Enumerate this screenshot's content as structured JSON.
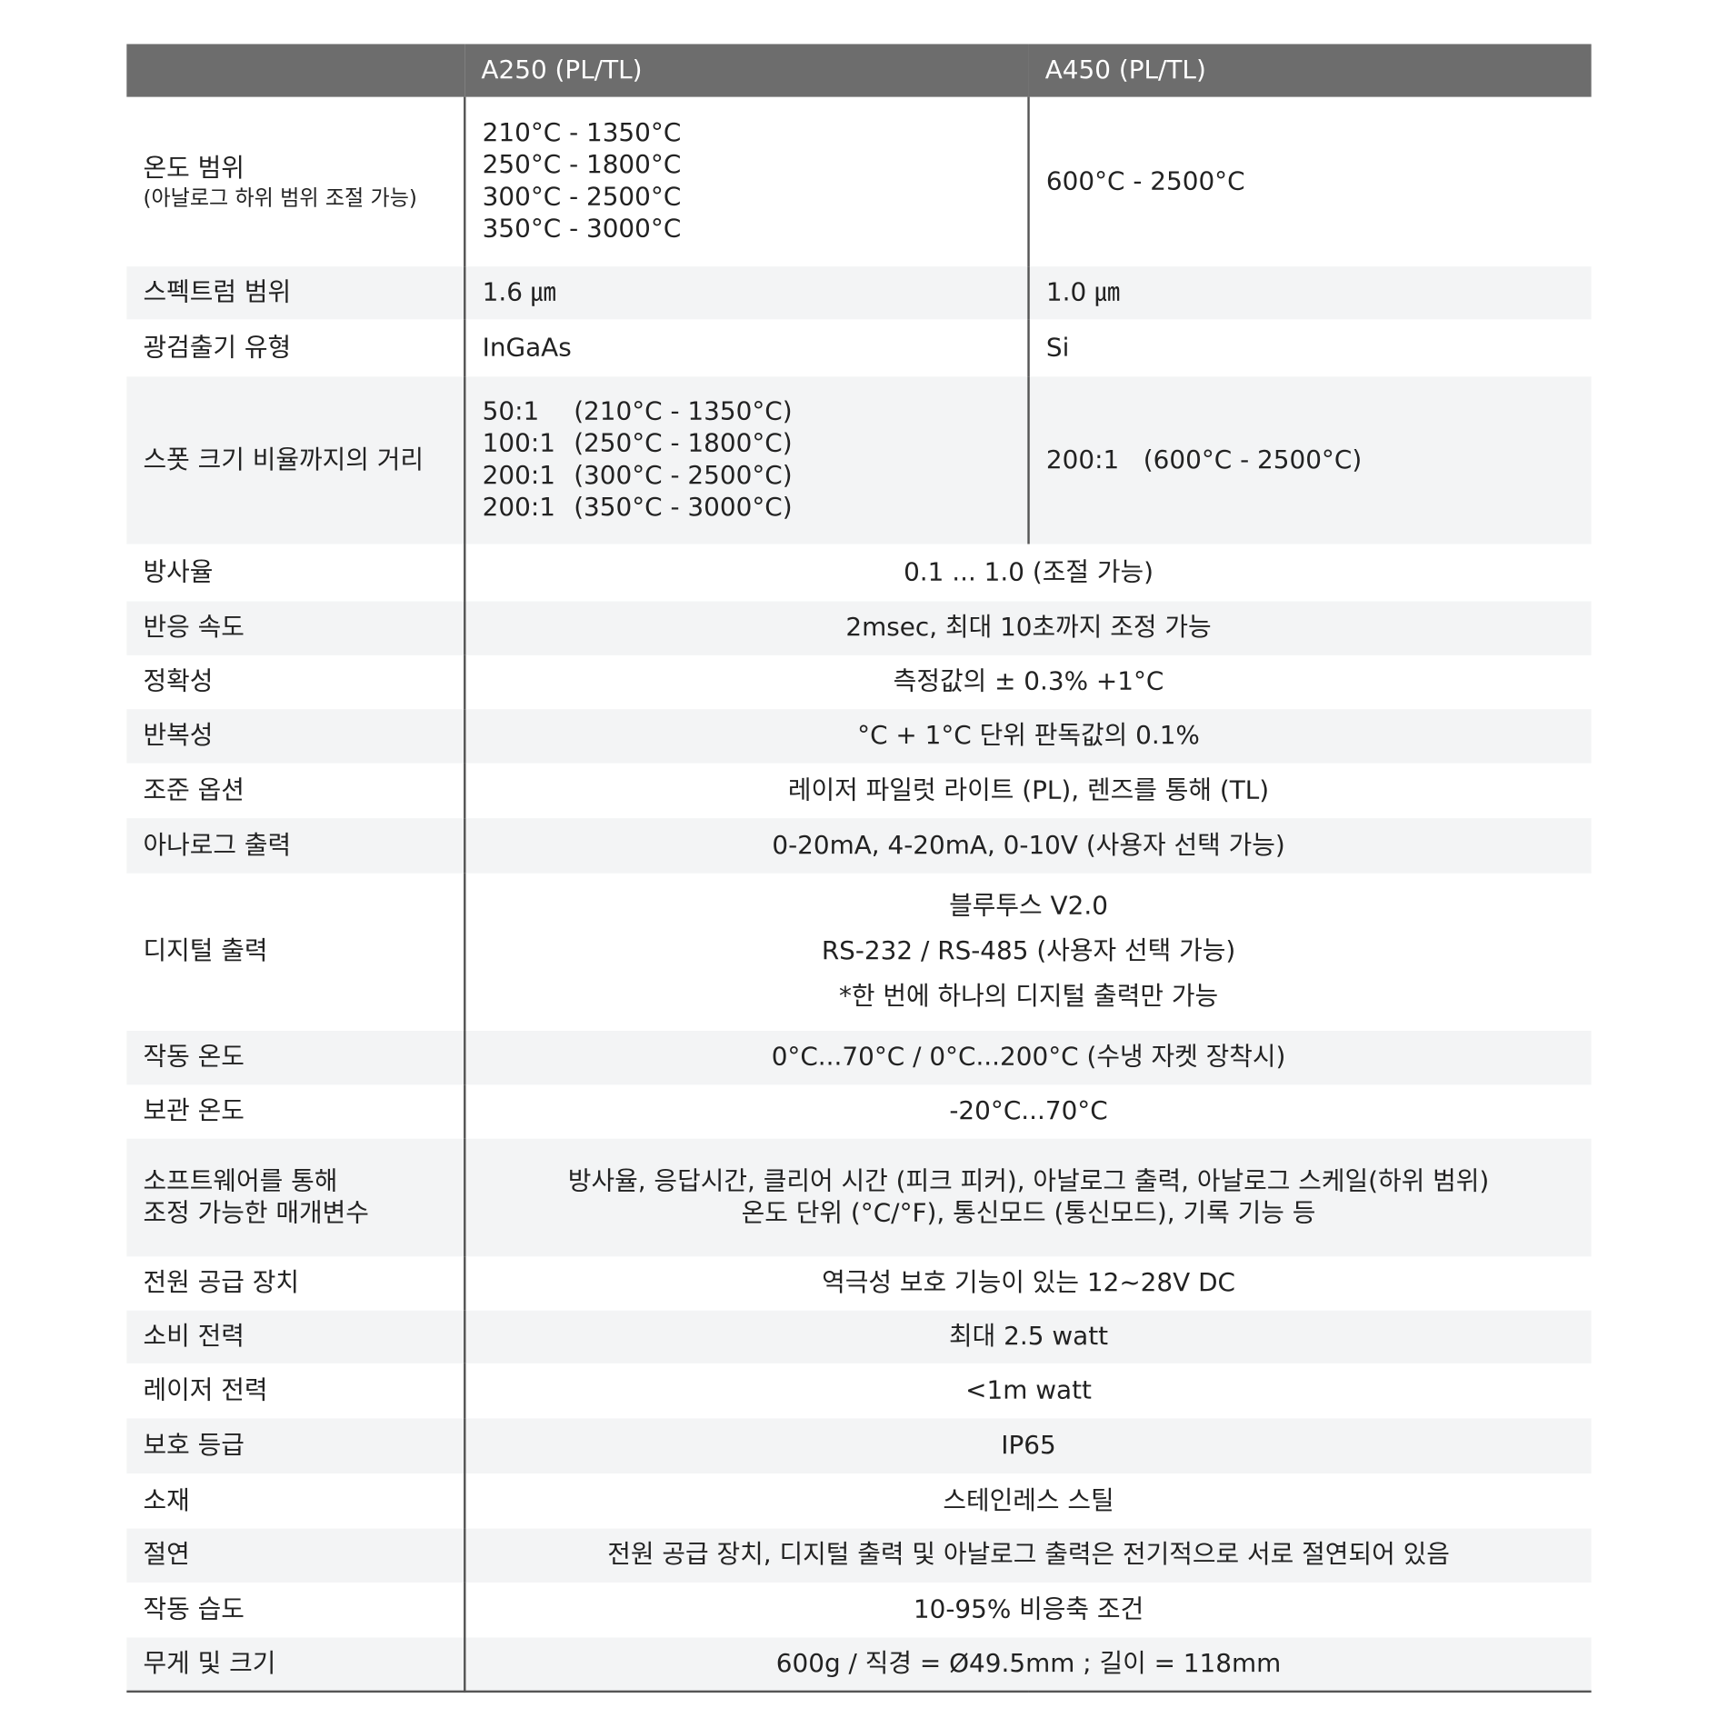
{
  "header": {
    "col1": "A250 (PL/TL)",
    "col2": "A450 (PL/TL)"
  },
  "rows": [
    {
      "label": "온도 범위",
      "sub": "(아날로그 하위 범위 조절 가능)",
      "a250": [
        "210°C - 1350°C",
        "250°C - 1800°C",
        "300°C - 2500°C",
        "350°C - 3000°C"
      ],
      "a450": "600°C - 2500°C"
    },
    {
      "label": "스펙트럼 범위",
      "a250": "1.6 ㎛",
      "a450": "1.0 ㎛"
    },
    {
      "label": "광검출기 유형",
      "a250": "InGaAs",
      "a450": "Si"
    },
    {
      "label": "스폿 크기 비율까지의 거리",
      "a250": [
        [
          "50:1",
          "(210°C - 1350°C)"
        ],
        [
          "100:1",
          "(250°C - 1800°C)"
        ],
        [
          "200:1",
          "(300°C - 2500°C)"
        ],
        [
          "200:1",
          "(350°C - 3000°C)"
        ]
      ],
      "a450": "200:1   (600°C - 2500°C)"
    },
    {
      "label": "방사율",
      "value": "0.1 ... 1.0 (조절 가능)"
    },
    {
      "label": "반응 속도",
      "value": "2msec, 최대 10초까지 조정 가능"
    },
    {
      "label": "정확성",
      "value": "측정값의 ± 0.3% +1°C"
    },
    {
      "label": "반복성",
      "value": "°C + 1°C 단위 판독값의 0.1%"
    },
    {
      "label": "조준 옵션",
      "value": "레이저 파일럿 라이트 (PL), 렌즈를 통해 (TL)"
    },
    {
      "label": "아나로그 출력",
      "value": "0-20mA, 4-20mA, 0-10V (사용자 선택 가능)"
    },
    {
      "label": "디지털 출력",
      "lines": [
        "블루투스 V2.0",
        "RS-232 / RS-485 (사용자 선택 가능)",
        "*한 번에 하나의 디지털 출력만 가능"
      ]
    },
    {
      "label": "작동 온도",
      "value": "0°C...70°C / 0°C...200°C (수냉 자켓 장착시)"
    },
    {
      "label": "보관 온도",
      "value": "-20°C...70°C"
    },
    {
      "label": "소프트웨어를 통해",
      "label2": "조정 가능한 매개변수",
      "lines": [
        "방사율, 응답시간, 클리어 시간 (피크 피커), 아날로그 출력, 아날로그 스케일(하위 범위)",
        "온도 단위 (°C/°F), 통신모드 (통신모드), 기록 기능 등"
      ]
    },
    {
      "label": "전원 공급 장치",
      "value": "역극성 보호 기능이 있는 12~28V DC"
    },
    {
      "label": "소비 전력",
      "value": "최대 2.5 watt"
    },
    {
      "label": "레이저 전력",
      "value": "<1m watt"
    },
    {
      "label": "보호 등급",
      "value": "IP65"
    },
    {
      "label": "소재",
      "value": "스테인레스 스틸"
    },
    {
      "label": "절연",
      "value": "전원 공급 장치, 디지털 출력 및 아날로그 출력은 전기적으로 서로 절연되어 있음"
    },
    {
      "label": "작동 습도",
      "value": "10-95% 비응축 조건"
    },
    {
      "label": "무게 및 크기",
      "value": "600g / 직경 = Ø49.5mm ; 길이 = 118mm"
    }
  ]
}
